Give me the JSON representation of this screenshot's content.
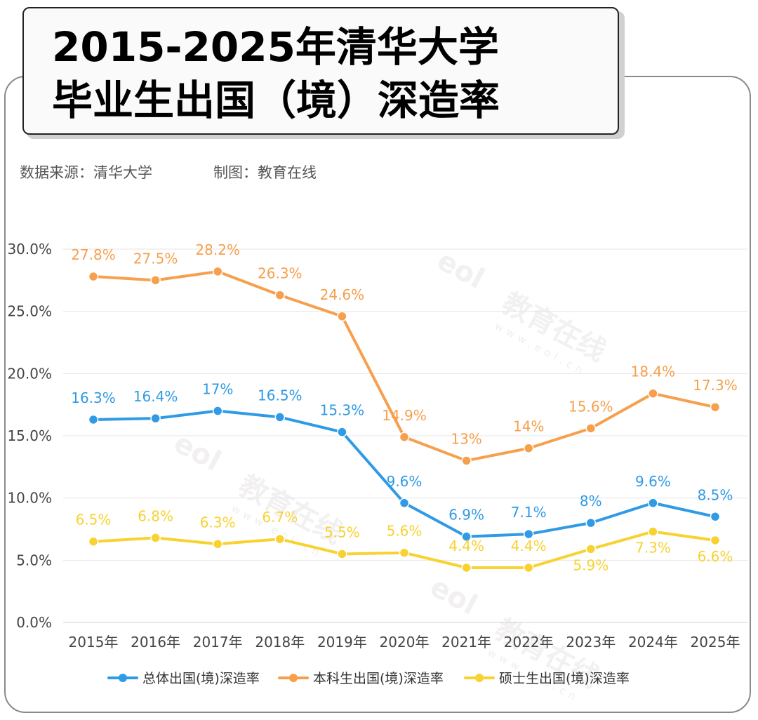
{
  "header": {
    "title_line1": "2015-2025年清华大学",
    "title_line2": "毕业生出国（境）深造率",
    "source": "数据来源：清华大学",
    "credit": "制图：教育在线"
  },
  "watermark": {
    "logo": "eol",
    "text": "教育在线",
    "url": "www.eol.cn"
  },
  "chart_data": {
    "type": "line",
    "title": "2015-2025年清华大学毕业生出国（境）深造率",
    "categories": [
      "2015年",
      "2016年",
      "2017年",
      "2018年",
      "2019年",
      "2020年",
      "2021年",
      "2022年",
      "2023年",
      "2024年",
      "2025年"
    ],
    "ylim": [
      0,
      30
    ],
    "yticks": [
      0,
      5,
      10,
      15,
      20,
      25,
      30
    ],
    "ytick_labels": [
      "0.0%",
      "5.0%",
      "10.0%",
      "15.0%",
      "20.0%",
      "25.0%",
      "30.0%"
    ],
    "grid": true,
    "legend_position": "bottom",
    "series": [
      {
        "name": "总体出国(境)深造率",
        "color": "#2f9ae5",
        "values": [
          16.3,
          16.4,
          17,
          16.5,
          15.3,
          9.6,
          6.9,
          7.1,
          8,
          9.6,
          8.5
        ],
        "labels": [
          "16.3%",
          "16.4%",
          "17%",
          "16.5%",
          "15.3%",
          "9.6%",
          "6.9%",
          "7.1%",
          "8%",
          "9.6%",
          "8.5%"
        ],
        "label_pos": [
          "above",
          "above",
          "above",
          "above",
          "above",
          "above",
          "above",
          "above",
          "above",
          "above",
          "above"
        ]
      },
      {
        "name": "本科生出国(境)深造率",
        "color": "#f6a04d",
        "values": [
          27.8,
          27.5,
          28.2,
          26.3,
          24.6,
          14.9,
          13,
          14,
          15.6,
          18.4,
          17.3
        ],
        "labels": [
          "27.8%",
          "27.5%",
          "28.2%",
          "26.3%",
          "24.6%",
          "14.9%",
          "13%",
          "14%",
          "15.6%",
          "18.4%",
          "17.3%"
        ],
        "label_pos": [
          "above",
          "above",
          "above",
          "above",
          "above",
          "above",
          "above",
          "above",
          "above",
          "above",
          "above"
        ]
      },
      {
        "name": "硕士生出国(境)深造率",
        "color": "#f7d230",
        "values": [
          6.5,
          6.8,
          6.3,
          6.7,
          5.5,
          5.6,
          4.4,
          4.4,
          5.9,
          7.3,
          6.6
        ],
        "labels": [
          "6.5%",
          "6.8%",
          "6.3%",
          "6.7%",
          "5.5%",
          "5.6%",
          "4.4%",
          "4.4%",
          "5.9%",
          "7.3%",
          "6.6%"
        ],
        "label_pos": [
          "above",
          "above",
          "above",
          "above",
          "above",
          "above",
          "above",
          "above",
          "below",
          "below",
          "below"
        ]
      }
    ]
  }
}
